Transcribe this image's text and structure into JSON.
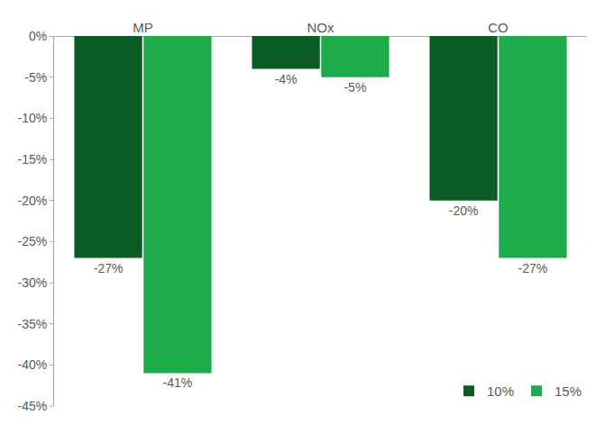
{
  "chart_data": {
    "type": "bar",
    "categories": [
      "MP",
      "NOx",
      "CO"
    ],
    "series": [
      {
        "name": "10%",
        "color": "#0b5b25",
        "values": [
          -27,
          -4,
          -20
        ],
        "value_labels": [
          "-27%",
          "-4%",
          "-20%"
        ]
      },
      {
        "name": "15%",
        "color": "#1dab4c",
        "values": [
          -41,
          -5,
          -27
        ],
        "value_labels": [
          "-41%",
          "-5%",
          "-27%"
        ]
      }
    ],
    "ylim": [
      -45,
      0
    ],
    "yticks": [
      {
        "value": 0,
        "label": "0%"
      },
      {
        "value": -5,
        "label": "-5%"
      },
      {
        "value": -10,
        "label": "-10%"
      },
      {
        "value": -15,
        "label": "-15%"
      },
      {
        "value": -20,
        "label": "-20%"
      },
      {
        "value": -25,
        "label": "-25%"
      },
      {
        "value": -30,
        "label": "-30%"
      },
      {
        "value": -35,
        "label": "-35%"
      },
      {
        "value": -40,
        "label": "-40%"
      },
      {
        "value": -45,
        "label": "-45%"
      }
    ],
    "grid": false,
    "legend": "lower right",
    "data_labels": true
  }
}
